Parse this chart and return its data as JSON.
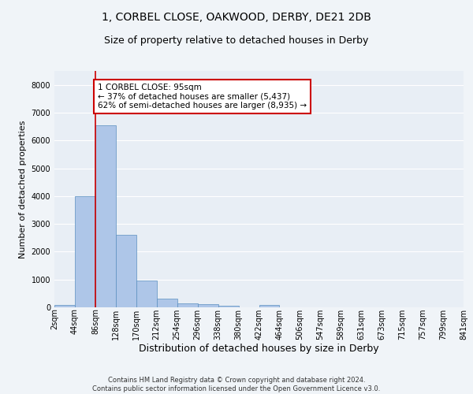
{
  "title1": "1, CORBEL CLOSE, OAKWOOD, DERBY, DE21 2DB",
  "title2": "Size of property relative to detached houses in Derby",
  "xlabel": "Distribution of detached houses by size in Derby",
  "ylabel": "Number of detached properties",
  "bar_values": [
    75,
    4000,
    6550,
    2600,
    950,
    320,
    130,
    100,
    70,
    0,
    90,
    0,
    0,
    0,
    0,
    0,
    0,
    0,
    0,
    0
  ],
  "bar_labels": [
    "2sqm",
    "44sqm",
    "86sqm",
    "128sqm",
    "170sqm",
    "212sqm",
    "254sqm",
    "296sqm",
    "338sqm",
    "380sqm",
    "422sqm",
    "464sqm",
    "506sqm",
    "547sqm",
    "589sqm",
    "631sqm",
    "673sqm",
    "715sqm",
    "757sqm",
    "799sqm",
    "841sqm"
  ],
  "bar_color": "#aec6e8",
  "bar_edge_color": "#5a8fc0",
  "background_color": "#e8eef5",
  "fig_background_color": "#f0f4f8",
  "grid_color": "#ffffff",
  "vline_x": 2,
  "vline_color": "#cc0000",
  "annotation_text": "1 CORBEL CLOSE: 95sqm\n← 37% of detached houses are smaller (5,437)\n62% of semi-detached houses are larger (8,935) →",
  "ylim": [
    0,
    8500
  ],
  "title1_fontsize": 10,
  "title2_fontsize": 9,
  "xlabel_fontsize": 9,
  "ylabel_fontsize": 8,
  "tick_fontsize": 7,
  "footer": "Contains HM Land Registry data © Crown copyright and database right 2024.\nContains public sector information licensed under the Open Government Licence v3.0."
}
